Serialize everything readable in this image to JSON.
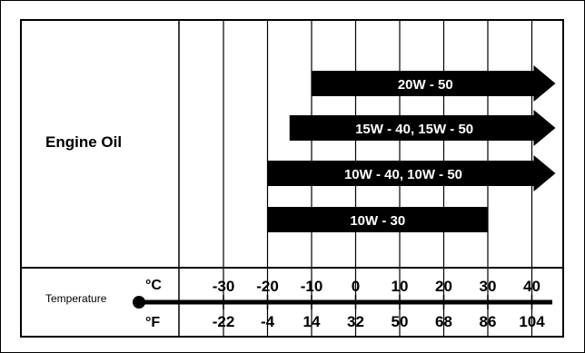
{
  "chart_data": {
    "type": "range-bar",
    "category_label": "Engine Oil",
    "axis_label": "Temperature",
    "unit_celsius": "°C",
    "unit_fahrenheit": "°F",
    "celsius_ticks": [
      "-30",
      "-20",
      "-10",
      "0",
      "10",
      "20",
      "30",
      "40"
    ],
    "fahrenheit_ticks": [
      "-22",
      "-4",
      "14",
      "32",
      "50",
      "68",
      "86",
      "104"
    ],
    "celsius_values": [
      -30,
      -20,
      -10,
      0,
      10,
      20,
      30,
      40
    ],
    "xlim": [
      -40,
      45
    ],
    "bars": [
      {
        "label": "20W - 50",
        "min_c": -10,
        "max_c": 45,
        "open_ended": true
      },
      {
        "label": "15W - 40,  15W - 50",
        "min_c": -15,
        "max_c": 45,
        "open_ended": true
      },
      {
        "label": "10W - 40,  10W - 50",
        "min_c": -20,
        "max_c": 45,
        "open_ended": true
      },
      {
        "label": "10W - 30",
        "min_c": -20,
        "max_c": 30,
        "open_ended": false
      }
    ]
  },
  "colors": {
    "bar": "#000000",
    "bar_text": "#ffffff",
    "grid": "#000000",
    "background": "#ffffff"
  }
}
